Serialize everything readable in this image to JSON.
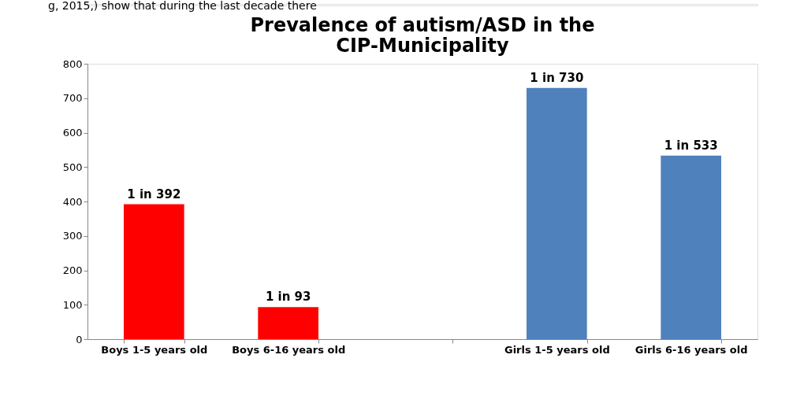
{
  "chart_data": {
    "type": "bar",
    "title": "Prevalence of autism/ASD in the CIP-Municipality",
    "annotations": [
      "g, 2015,) show that during the last decade there"
    ],
    "categories": [
      "Boys 1-5 years old",
      "Boys 6-16 years old",
      null,
      "Girls 1-5 years old",
      "Girls 6-16 years old"
    ],
    "values": [
      392,
      93,
      null,
      730,
      533
    ],
    "colors": [
      "#ff0000",
      "#ff0000",
      "#4f81bd",
      "#4f81bd",
      "#4f81bd"
    ],
    "value_labels": [
      "1 in 392",
      "1 in 93",
      null,
      "1 in 730",
      "1 in 533"
    ],
    "ylim": [
      0,
      800
    ],
    "yticks": [
      0,
      100,
      200,
      300,
      400,
      500,
      600,
      700,
      800
    ],
    "grid": false
  }
}
